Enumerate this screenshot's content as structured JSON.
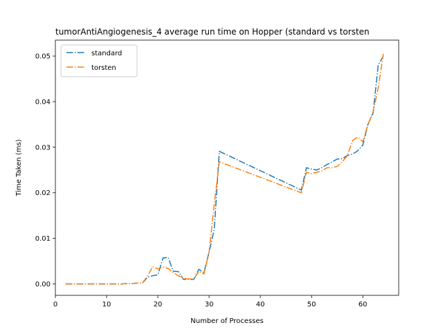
{
  "chart_data": {
    "type": "line",
    "title": "tumorAntiAngiogenesis_4 average run time on Hopper (standard vs torsten",
    "xlabel": "Number of Processes",
    "ylabel": "Time Taken (ms)",
    "xlim": [
      0,
      67
    ],
    "ylim": [
      -0.0025,
      0.0535
    ],
    "xticks": [
      0,
      10,
      20,
      30,
      40,
      50,
      60
    ],
    "yticks": [
      0.0,
      0.01,
      0.02,
      0.03,
      0.04,
      0.05
    ],
    "ytick_labels": [
      "0.00",
      "0.01",
      "0.02",
      "0.03",
      "0.04",
      "0.05"
    ],
    "legend": "top-left",
    "grid": false,
    "series": [
      {
        "name": "standard",
        "color": "#1f77b4",
        "linestyle": "dashdot",
        "x": [
          2,
          3,
          4,
          5,
          6,
          7,
          8,
          9,
          10,
          11,
          12,
          13,
          14,
          15,
          16,
          17,
          18,
          19,
          20,
          21,
          22,
          23,
          24,
          25,
          26,
          27,
          28,
          29,
          30,
          31,
          32,
          48,
          49,
          50,
          51,
          52,
          53,
          54,
          55,
          56,
          57,
          58,
          59,
          60,
          61,
          62,
          63,
          64
        ],
        "y": [
          0.0,
          0.0,
          0.0,
          0.0,
          0.0,
          0.0,
          0.0,
          0.0,
          0.0,
          0.0,
          0.0,
          0.0,
          0.0001,
          0.0001,
          0.0002,
          0.0002,
          0.0015,
          0.0018,
          0.002,
          0.0057,
          0.0058,
          0.0028,
          0.0027,
          0.001,
          0.001,
          0.001,
          0.0032,
          0.0025,
          0.007,
          0.012,
          0.0291,
          0.0206,
          0.0255,
          0.0252,
          0.025,
          0.0255,
          0.0262,
          0.0268,
          0.0274,
          0.0275,
          0.0282,
          0.0285,
          0.0292,
          0.0305,
          0.035,
          0.0375,
          0.048,
          0.05
        ]
      },
      {
        "name": "torsten",
        "color": "#ff7f0e",
        "linestyle": "dashdot",
        "x": [
          2,
          3,
          4,
          5,
          6,
          7,
          8,
          9,
          10,
          11,
          12,
          13,
          14,
          15,
          16,
          17,
          18,
          19,
          20,
          21,
          22,
          23,
          24,
          25,
          26,
          27,
          28,
          29,
          30,
          31,
          32,
          48,
          49,
          50,
          51,
          52,
          53,
          54,
          55,
          56,
          57,
          58,
          59,
          60,
          61,
          62,
          63,
          64
        ],
        "y": [
          0.0,
          0.0,
          0.0,
          0.0,
          0.0,
          0.0,
          0.0,
          0.0,
          0.0,
          0.0,
          0.0,
          0.0,
          0.0001,
          0.0001,
          0.0002,
          0.0002,
          0.0018,
          0.0038,
          0.0033,
          0.0037,
          0.0034,
          0.0025,
          0.0018,
          0.0012,
          0.0011,
          0.0011,
          0.0027,
          0.0022,
          0.007,
          0.0175,
          0.0268,
          0.02,
          0.0245,
          0.0242,
          0.0245,
          0.0248,
          0.0255,
          0.0255,
          0.0258,
          0.0268,
          0.0282,
          0.0315,
          0.0322,
          0.0312,
          0.035,
          0.0378,
          0.043,
          0.0505
        ]
      }
    ]
  }
}
